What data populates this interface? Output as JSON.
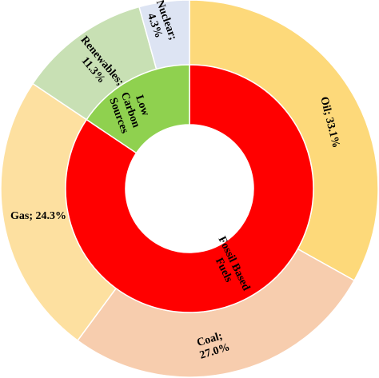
{
  "chart_data": {
    "type": "pie",
    "style": "sunburst",
    "outer_ring": [
      {
        "label": "Oil; 33.1%",
        "name": "Oil",
        "value": 33.1,
        "color": "#FDD97A"
      },
      {
        "label": "Coal; 27.0%",
        "name": "Coal",
        "value": 27.0,
        "color": "#F7CDAE"
      },
      {
        "label": "Gas; 24.3%",
        "name": "Gas",
        "value": 24.3,
        "color": "#FDE0A0"
      },
      {
        "label": "Renewables; 11.3%",
        "name": "Renewables",
        "value": 11.3,
        "color": "#C8E0B4"
      },
      {
        "label": "Nuclear; 4.3%",
        "name": "Nuclear",
        "value": 4.3,
        "color": "#DDE4F3"
      }
    ],
    "inner_ring": [
      {
        "label": "Fossil Based Fuels",
        "value": 84.4,
        "color": "#FF0000"
      },
      {
        "label": "Low Carbon Sources",
        "value": 15.6,
        "color": "#8FD14F"
      }
    ]
  }
}
